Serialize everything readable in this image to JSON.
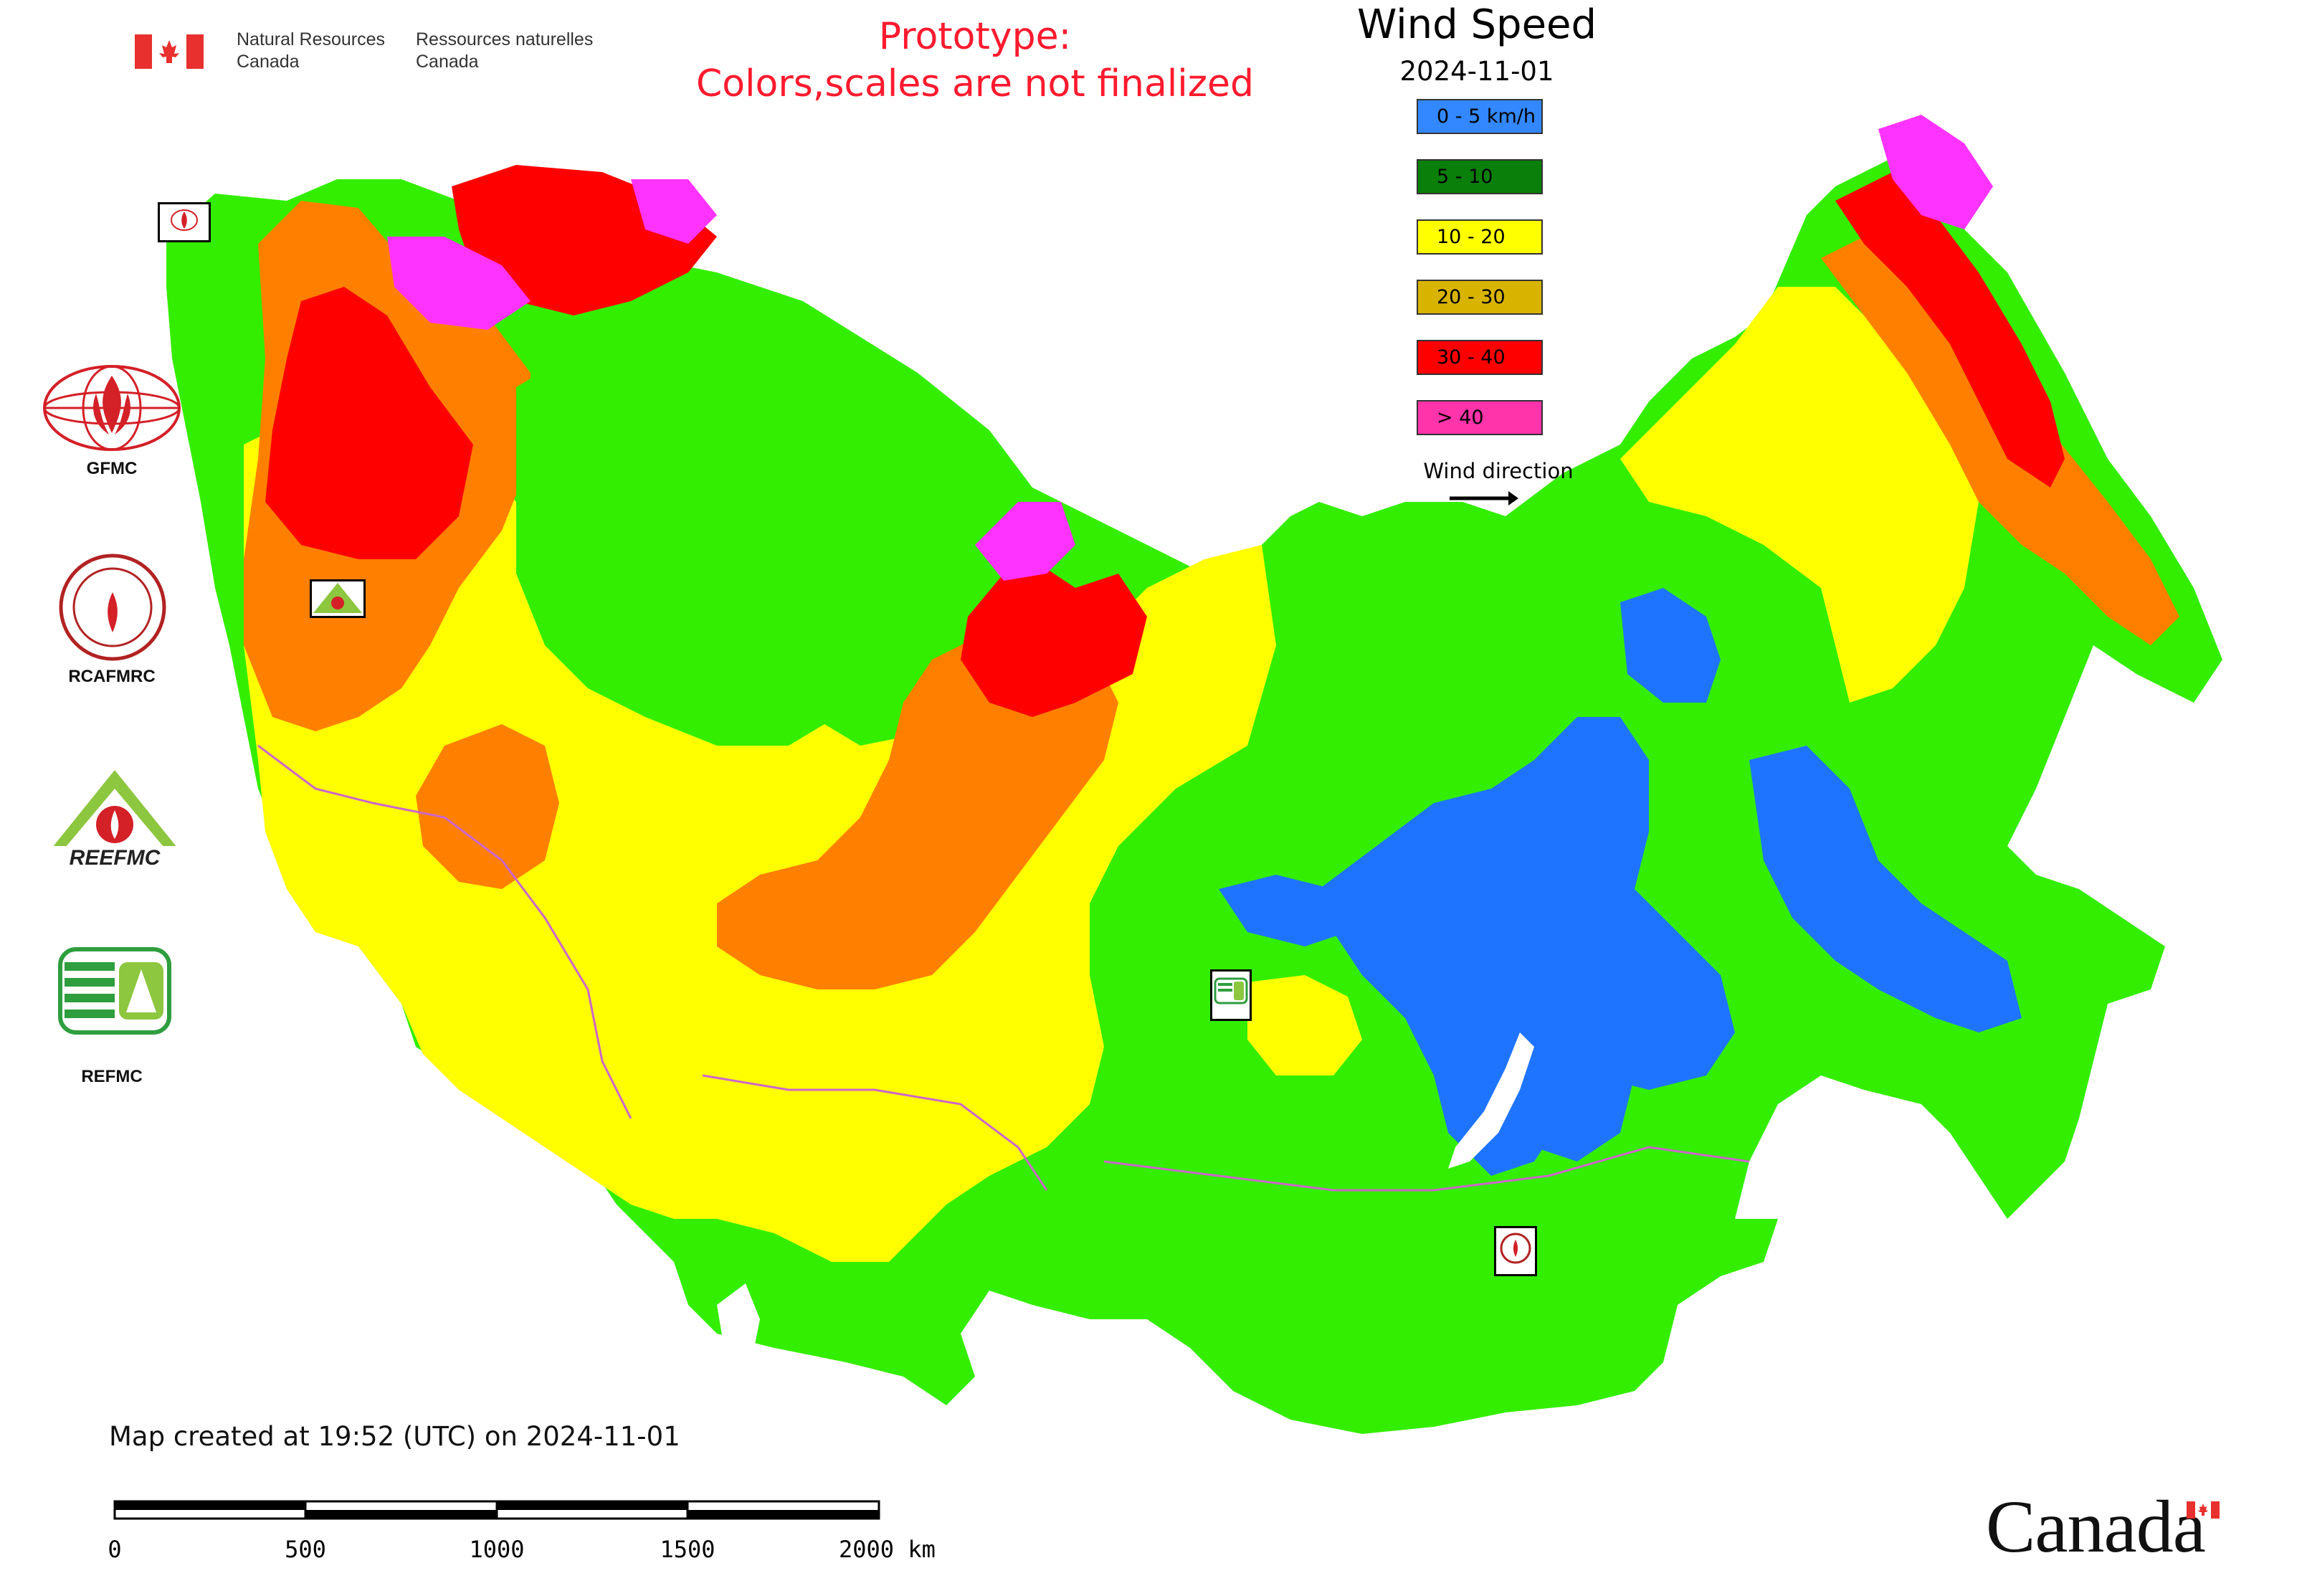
{
  "header": {
    "agency_en": [
      "Natural Resources",
      "Canada"
    ],
    "agency_fr": [
      "Ressources naturelles",
      "Canada"
    ],
    "prototype_notice": [
      "Prototype:",
      "Colors,scales are not finalized"
    ]
  },
  "legend": {
    "title": "Wind Speed",
    "date": "2024-11-01",
    "classes": [
      {
        "label": "0 - 5 km/h",
        "color": "#3388ff"
      },
      {
        "label": "5 - 10",
        "color": "#0a7f0a"
      },
      {
        "label": "10 - 20",
        "color": "#ffff00"
      },
      {
        "label": "20 - 30",
        "color": "#d8b400"
      },
      {
        "label": "30 - 40",
        "color": "#ff0000"
      },
      {
        "label": "> 40",
        "color": "#ff33aa"
      }
    ],
    "wind_direction_label": "Wind direction"
  },
  "map_colors": {
    "calm": "#1f74ff",
    "green": "#33ee00",
    "yellow": "#ffff00",
    "orange": "#ff8000",
    "red": "#ff0000",
    "magenta": "#ff33ff",
    "border": "#cc66cc"
  },
  "logos": {
    "gfmc": "GFMC",
    "rcafmrc": "RCAFMRC",
    "reefmc": "REEFMC",
    "refmc": "REFMC"
  },
  "footer": {
    "map_created": "Map created at 19:52 (UTC) on 2024-11-01",
    "scale_ticks": [
      "0",
      "500",
      "1000",
      "1500",
      "2000 km"
    ],
    "wordmark": "Canada"
  }
}
